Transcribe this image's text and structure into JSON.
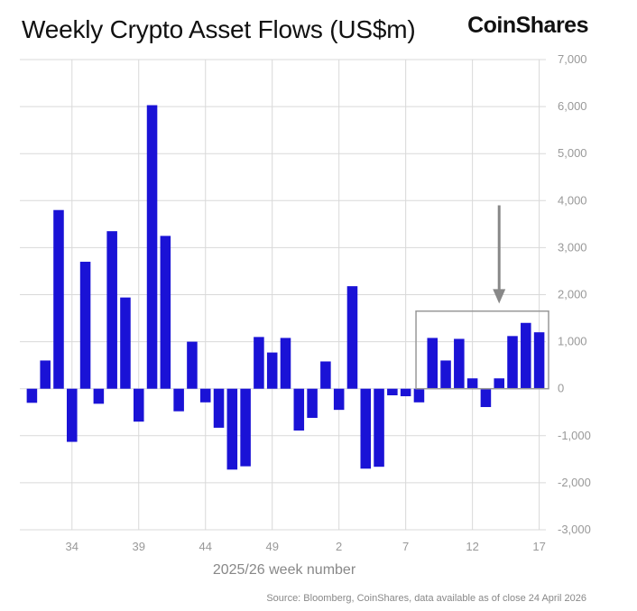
{
  "header": {
    "title": "Weekly Crypto Asset Flows (US$m)",
    "brand": "CoinShares"
  },
  "footer": {
    "source": "Source: Bloomberg, CoinShares, data available as of close 24 April 2026"
  },
  "colors": {
    "bar": "#1a12d6",
    "grid": "#d9d9d9",
    "highlight_box": "#999999",
    "arrow": "#888888"
  },
  "chart_data": {
    "type": "bar",
    "title": "Weekly Crypto Asset Flows (US$m)",
    "xlabel": "2025/26 week number",
    "ylabel": "US$m",
    "ylim": [
      -3000,
      7000
    ],
    "yticks": [
      -3000,
      -2000,
      -1000,
      0,
      1000,
      2000,
      3000,
      4000,
      5000,
      6000,
      7000
    ],
    "ytick_labels": [
      "-3,000",
      "-2,000",
      "-1,000",
      "0",
      "1,000",
      "2,000",
      "3,000",
      "4,000",
      "5,000",
      "6,000",
      "7,000"
    ],
    "xtick_labels": [
      {
        "index": 3,
        "label": "34"
      },
      {
        "index": 8,
        "label": "39"
      },
      {
        "index": 13,
        "label": "44"
      },
      {
        "index": 18,
        "label": "49"
      },
      {
        "index": 23,
        "label": "2"
      },
      {
        "index": 28,
        "label": "7"
      },
      {
        "index": 33,
        "label": "12"
      },
      {
        "index": 38,
        "label": "17"
      }
    ],
    "categories": [
      "31",
      "32",
      "33",
      "34",
      "35",
      "36",
      "37",
      "38",
      "39",
      "40",
      "41",
      "42",
      "43",
      "44",
      "45",
      "46",
      "47",
      "48",
      "49",
      "50",
      "51",
      "52",
      "1",
      "2",
      "3",
      "4",
      "5",
      "6",
      "7",
      "8",
      "9",
      "10",
      "11",
      "12",
      "13",
      "14",
      "15",
      "16",
      "17"
    ],
    "values": [
      -300,
      600,
      3800,
      -1130,
      2700,
      -320,
      3350,
      1940,
      -700,
      6030,
      3250,
      -480,
      1000,
      -290,
      -830,
      -1720,
      -1650,
      1100,
      770,
      1080,
      -890,
      -620,
      580,
      -450,
      2180,
      -1700,
      -1660,
      -140,
      -160,
      -290,
      1080,
      600,
      1060,
      220,
      -390,
      220,
      1120,
      1400,
      1200
    ],
    "highlight": {
      "from_index": 29,
      "to_index": 38,
      "ymin": 0,
      "ymax": 1650
    },
    "annotation": {
      "type": "arrow",
      "target_index": 35,
      "from_value": 3900,
      "to_value": 1850
    }
  }
}
